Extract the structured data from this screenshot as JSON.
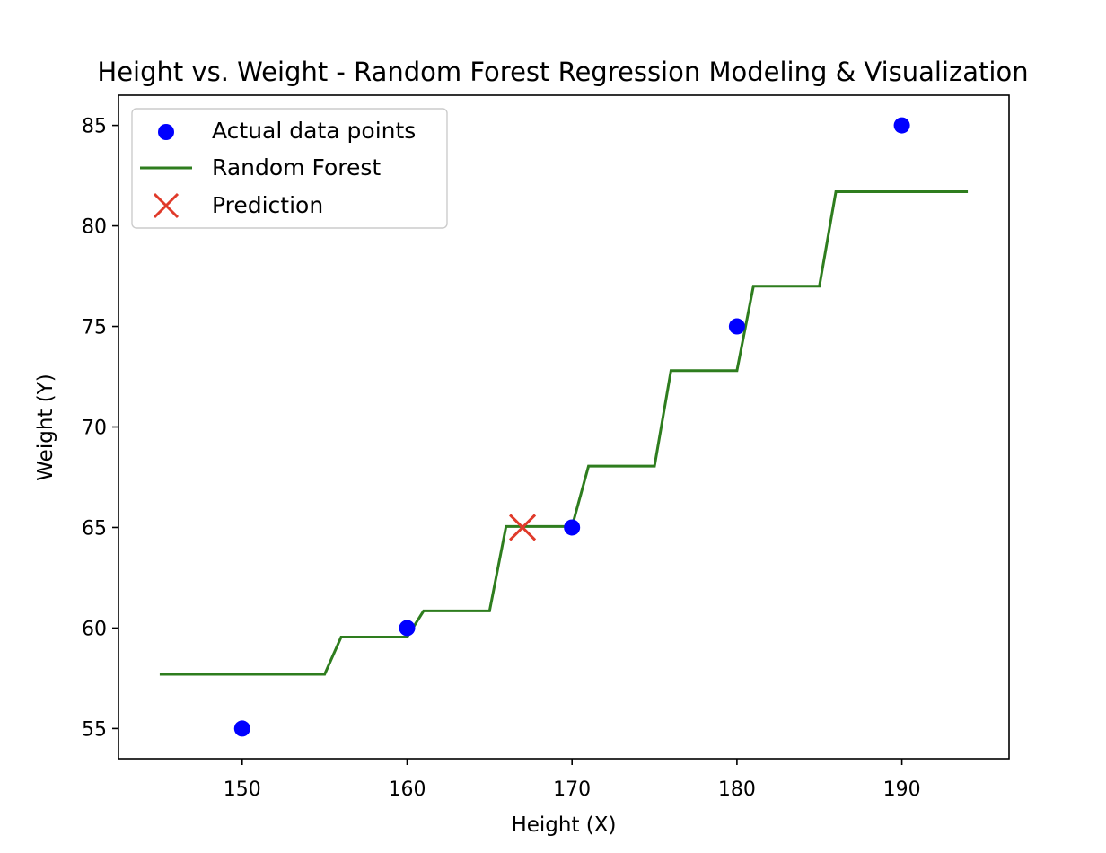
{
  "chart_data": {
    "type": "line",
    "title": "Height vs. Weight - Random Forest Regression Modeling & Visualization",
    "xlabel": "Height (X)",
    "ylabel": "Weight (Y)",
    "xlim": [
      142.5,
      196.5
    ],
    "ylim": [
      53.5,
      86.5
    ],
    "xticks": [
      150,
      160,
      170,
      180,
      190
    ],
    "yticks": [
      55,
      60,
      65,
      70,
      75,
      80,
      85
    ],
    "grid": false,
    "legend_position": "upper left",
    "series": [
      {
        "name": "Actual data points",
        "kind": "scatter",
        "color": "#0000ff",
        "marker": "circle",
        "x": [
          150,
          160,
          170,
          180,
          190
        ],
        "y": [
          55,
          60,
          65,
          75,
          85
        ]
      },
      {
        "name": "Random Forest",
        "kind": "line",
        "color": "#2e7d1e",
        "x": [
          145,
          146,
          147,
          148,
          149,
          150,
          151,
          152,
          153,
          154,
          155,
          156,
          157,
          158,
          159,
          160,
          161,
          162,
          163,
          164,
          165,
          166,
          167,
          168,
          169,
          170,
          171,
          172,
          173,
          174,
          175,
          176,
          177,
          178,
          179,
          180,
          181,
          182,
          183,
          184,
          185,
          186,
          187,
          188,
          189,
          190,
          191,
          192,
          193,
          194
        ],
        "y": [
          57.7,
          57.7,
          57.7,
          57.7,
          57.7,
          57.7,
          57.7,
          57.7,
          57.7,
          57.7,
          57.7,
          59.55,
          59.55,
          59.55,
          59.55,
          59.55,
          60.85,
          60.85,
          60.85,
          60.85,
          60.85,
          65.05,
          65.05,
          65.05,
          65.05,
          65.05,
          68.05,
          68.05,
          68.05,
          68.05,
          68.05,
          72.8,
          72.8,
          72.8,
          72.8,
          72.8,
          77.0,
          77.0,
          77.0,
          77.0,
          77.0,
          81.7,
          81.7,
          81.7,
          81.7,
          81.7,
          81.7,
          81.7,
          81.7,
          81.7
        ]
      },
      {
        "name": "Prediction",
        "kind": "scatter",
        "color": "#e03a2a",
        "marker": "x",
        "x": [
          167
        ],
        "y": [
          65
        ]
      }
    ]
  }
}
